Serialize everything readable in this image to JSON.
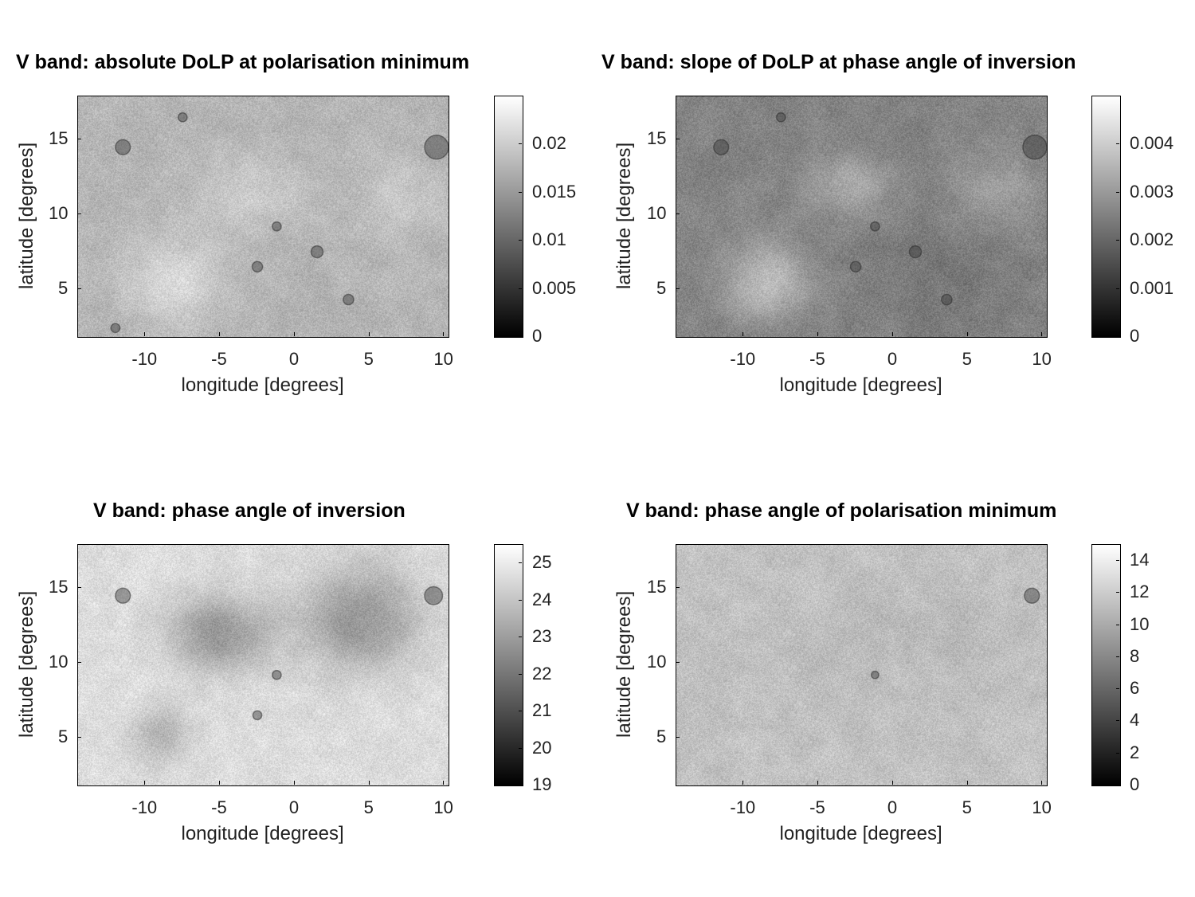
{
  "chart_data": [
    {
      "type": "heatmap",
      "title": "V band: absolute DoLP at polarisation minimum",
      "xlabel": "longitude [degrees]",
      "ylabel": "latitude [degrees]",
      "xlim": [
        -14.5,
        10.3
      ],
      "ylim": [
        1.8,
        17.9
      ],
      "xticks": [
        -10,
        -5,
        0,
        5,
        10
      ],
      "xtick_labels": [
        "-10",
        "-5",
        "0",
        "5",
        "10"
      ],
      "yticks": [
        5,
        10,
        15
      ],
      "ytick_labels": [
        "5",
        "10",
        "15"
      ],
      "colorbar": {
        "range": [
          0,
          0.025
        ],
        "ticks": [
          0,
          0.005,
          0.01,
          0.015,
          0.02
        ],
        "tick_labels": [
          "0",
          "0.005",
          "0.01",
          "0.015",
          "0.02"
        ]
      },
      "colormap": "gray",
      "base_level": 0.71,
      "bright_regions": [
        {
          "lon": -8,
          "lat": 5.5,
          "rx": 3.5,
          "ry": 2.8,
          "amp": 0.14
        },
        {
          "lon": -3,
          "lat": 11.5,
          "rx": 3.5,
          "ry": 2.5,
          "amp": 0.1
        },
        {
          "lon": 7,
          "lat": 11,
          "rx": 3,
          "ry": 2.5,
          "amp": 0.08
        }
      ],
      "dark_regions": [],
      "craters": [
        {
          "lon": 9.5,
          "lat": 14.5,
          "r": 0.8
        },
        {
          "lon": -11.5,
          "lat": 14.5,
          "r": 0.5
        },
        {
          "lon": -2.5,
          "lat": 6.5,
          "r": 0.35
        },
        {
          "lon": -1.2,
          "lat": 9.2,
          "r": 0.3
        },
        {
          "lon": 3.6,
          "lat": 4.3,
          "r": 0.35
        },
        {
          "lon": 1.5,
          "lat": 7.5,
          "r": 0.4
        },
        {
          "lon": -7.5,
          "lat": 16.5,
          "r": 0.3
        },
        {
          "lon": -12,
          "lat": 2.4,
          "r": 0.3
        }
      ]
    },
    {
      "type": "heatmap",
      "title": "V band: slope of DoLP at phase angle of inversion",
      "xlabel": "longitude [degrees]",
      "ylabel": "latitude [degrees]",
      "xlim": [
        -14.5,
        10.3
      ],
      "ylim": [
        1.8,
        17.9
      ],
      "xticks": [
        -10,
        -5,
        0,
        5,
        10
      ],
      "xtick_labels": [
        "-10",
        "-5",
        "0",
        "5",
        "10"
      ],
      "yticks": [
        5,
        10,
        15
      ],
      "ytick_labels": [
        "5",
        "10",
        "15"
      ],
      "colorbar": {
        "range": [
          0,
          0.005
        ],
        "ticks": [
          0,
          0.001,
          0.002,
          0.003,
          0.004
        ],
        "tick_labels": [
          "0",
          "0.001",
          "0.002",
          "0.003",
          "0.004"
        ]
      },
      "colormap": "gray",
      "base_level": 0.52,
      "bright_regions": [
        {
          "lon": -8.5,
          "lat": 5.5,
          "rx": 2.8,
          "ry": 2.5,
          "amp": 0.22
        },
        {
          "lon": -3,
          "lat": 12,
          "rx": 2.5,
          "ry": 2,
          "amp": 0.16
        },
        {
          "lon": 7,
          "lat": 11.5,
          "rx": 2.5,
          "ry": 2.5,
          "amp": 0.12
        }
      ],
      "dark_regions": [
        {
          "lon": 3,
          "lat": 6,
          "rx": 5,
          "ry": 3.5,
          "amp": 0.06
        }
      ],
      "craters": [
        {
          "lon": 9.5,
          "lat": 14.5,
          "r": 0.8
        },
        {
          "lon": -11.5,
          "lat": 14.5,
          "r": 0.5
        },
        {
          "lon": -2.5,
          "lat": 6.5,
          "r": 0.35
        },
        {
          "lon": -1.2,
          "lat": 9.2,
          "r": 0.3
        },
        {
          "lon": 3.6,
          "lat": 4.3,
          "r": 0.35
        },
        {
          "lon": 1.5,
          "lat": 7.5,
          "r": 0.4
        },
        {
          "lon": -7.5,
          "lat": 16.5,
          "r": 0.3
        }
      ]
    },
    {
      "type": "heatmap",
      "title": "V band: phase angle of inversion",
      "xlabel": "longitude [degrees]",
      "ylabel": "latitude [degrees]",
      "xlim": [
        -14.5,
        10.3
      ],
      "ylim": [
        1.8,
        17.9
      ],
      "xticks": [
        -10,
        -5,
        0,
        5,
        10
      ],
      "xtick_labels": [
        "-10",
        "-5",
        "0",
        "5",
        "10"
      ],
      "yticks": [
        5,
        10,
        15
      ],
      "ytick_labels": [
        "5",
        "10",
        "15"
      ],
      "colorbar": {
        "range": [
          19,
          25.5
        ],
        "ticks": [
          19,
          20,
          21,
          22,
          23,
          24,
          25
        ],
        "tick_labels": [
          "19",
          "20",
          "21",
          "22",
          "23",
          "24",
          "25"
        ]
      },
      "colormap": "gray",
      "base_level": 0.87,
      "bright_regions": [],
      "dark_regions": [
        {
          "lon": -5,
          "lat": 12,
          "rx": 3.5,
          "ry": 2.5,
          "amp": 0.28
        },
        {
          "lon": 4.5,
          "lat": 13,
          "rx": 4,
          "ry": 3.5,
          "amp": 0.28
        },
        {
          "lon": -9,
          "lat": 5,
          "rx": 2,
          "ry": 2,
          "amp": 0.16
        }
      ],
      "craters": [
        {
          "lon": 9.3,
          "lat": 14.5,
          "r": 0.6
        },
        {
          "lon": -11.5,
          "lat": 14.5,
          "r": 0.5
        },
        {
          "lon": -1.2,
          "lat": 9.2,
          "r": 0.3
        },
        {
          "lon": -2.5,
          "lat": 6.5,
          "r": 0.3
        }
      ]
    },
    {
      "type": "heatmap",
      "title": "V band: phase angle of polarisation minimum",
      "xlabel": "longitude [degrees]",
      "ylabel": "latitude [degrees]",
      "xlim": [
        -14.5,
        10.3
      ],
      "ylim": [
        1.8,
        17.9
      ],
      "xticks": [
        -10,
        -5,
        0,
        5,
        10
      ],
      "xtick_labels": [
        "-10",
        "-5",
        "0",
        "5",
        "10"
      ],
      "yticks": [
        5,
        10,
        15
      ],
      "ytick_labels": [
        "5",
        "10",
        "15"
      ],
      "colorbar": {
        "range": [
          0,
          15
        ],
        "ticks": [
          0,
          2,
          4,
          6,
          8,
          10,
          12,
          14
        ],
        "tick_labels": [
          "0",
          "2",
          "4",
          "6",
          "8",
          "10",
          "12",
          "14"
        ]
      },
      "colormap": "gray",
      "base_level": 0.76,
      "bright_regions": [],
      "dark_regions": [
        {
          "lon": -3,
          "lat": 11,
          "rx": 4,
          "ry": 3,
          "amp": 0.03
        },
        {
          "lon": 5,
          "lat": 12,
          "rx": 4,
          "ry": 3,
          "amp": 0.03
        }
      ],
      "craters": [
        {
          "lon": 9.3,
          "lat": 14.5,
          "r": 0.5
        },
        {
          "lon": -1.2,
          "lat": 9.2,
          "r": 0.25
        }
      ]
    }
  ]
}
